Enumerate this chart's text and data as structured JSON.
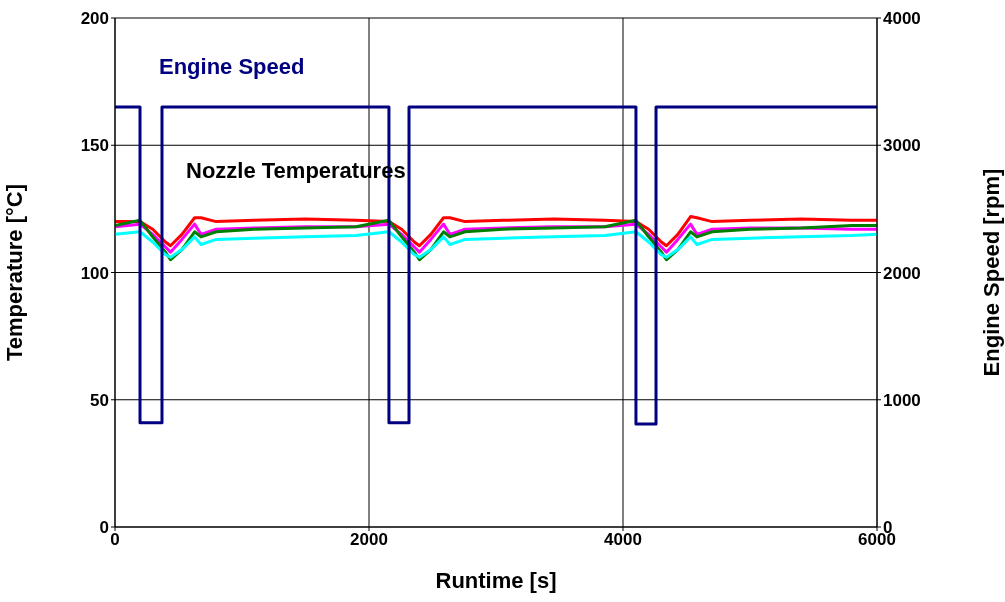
{
  "chart_data": {
    "type": "line",
    "xlabel": "Runtime [s]",
    "ylabel": "Temperature [°C]",
    "y2label": "Engine Speed [rpm]",
    "x": [
      0,
      197,
      297,
      397,
      437,
      527,
      627,
      677,
      797,
      1097,
      1497,
      1897,
      2157,
      2257,
      2357,
      2397,
      2487,
      2587,
      2637,
      2757,
      3057,
      3457,
      3857,
      4102,
      4202,
      4302,
      4342,
      4432,
      4532,
      4582,
      4702,
      5002,
      5402,
      5802,
      6000
    ],
    "series": [
      {
        "color": "#ff0000",
        "values": [
          120,
          120,
          117,
          112,
          110.5,
          115,
          121.5,
          121.5,
          120,
          120.5,
          121,
          120.5,
          120,
          117,
          112,
          110.5,
          115,
          121.5,
          121.5,
          120,
          120.5,
          121,
          120.5,
          120,
          117,
          112,
          110.5,
          115,
          122,
          121.5,
          120,
          120.5,
          121,
          120.5,
          120.5
        ]
      },
      {
        "color": "#ff00ff",
        "values": [
          118,
          119,
          115,
          110,
          108,
          113,
          119,
          115,
          117,
          117.5,
          118,
          118,
          119,
          115,
          110,
          108,
          113,
          119,
          115,
          117,
          117.5,
          118,
          118,
          119,
          115,
          110,
          108,
          113,
          119,
          115,
          117,
          117.5,
          117.5,
          117,
          117
        ]
      },
      {
        "color": "#008000",
        "values": [
          118.5,
          120.5,
          114,
          108,
          105,
          109,
          116,
          114,
          116,
          117,
          117.5,
          118,
          120.5,
          114,
          108,
          105,
          109,
          116,
          114,
          116,
          117,
          117.5,
          118,
          120.5,
          114,
          108,
          105,
          109,
          116,
          114,
          116,
          117,
          117.5,
          118.5,
          118.5
        ]
      },
      {
        "color": "#00ffff",
        "values": [
          115,
          116,
          112,
          107,
          106,
          109,
          114,
          111,
          113,
          113.5,
          114,
          114.5,
          116,
          112,
          107,
          106,
          109,
          114,
          111,
          113,
          113.5,
          114,
          114.5,
          116,
          112,
          107,
          106,
          109,
          114,
          111,
          113,
          113.5,
          114,
          114.5,
          115
        ]
      },
      {
        "name": "Engine Speed",
        "color": "#000080",
        "axis": "y2",
        "x": [
          0,
          197,
          197,
          370,
          370,
          2157,
          2157,
          2315,
          2315,
          4102,
          4102,
          4260,
          4260,
          6000
        ],
        "values": [
          3300,
          3300,
          820,
          820,
          3300,
          3300,
          820,
          820,
          3300,
          3300,
          810,
          810,
          3300,
          3300
        ]
      }
    ],
    "annotations": [
      "Nozzle Temperatures"
    ],
    "xlim": [
      0,
      6000
    ],
    "xticks": [
      0,
      2000,
      4000,
      6000
    ],
    "ylim": [
      0,
      200
    ],
    "yticks": [
      0,
      50,
      100,
      150,
      200
    ],
    "y2lim": [
      0,
      4000
    ],
    "y2ticks": [
      0,
      1000,
      2000,
      3000,
      4000
    ],
    "grid": true,
    "legend": false,
    "marker": "none",
    "line_style": "solid"
  }
}
